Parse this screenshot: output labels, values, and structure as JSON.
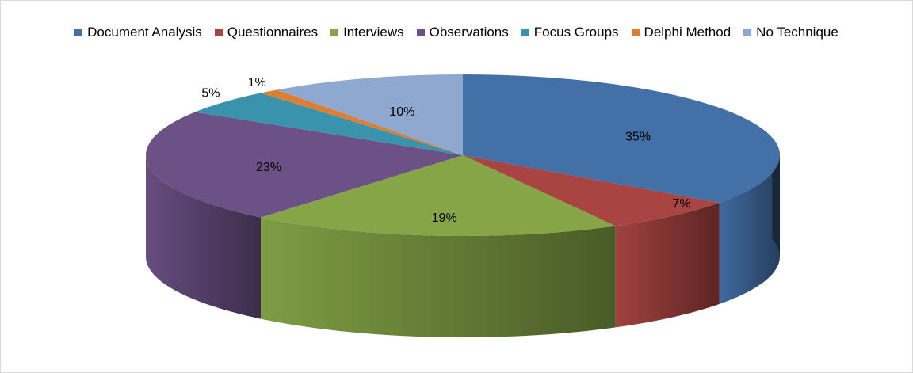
{
  "chart_data": {
    "type": "pie",
    "categories": [
      "Document Analysis",
      "Questionnaires",
      "Interviews",
      "Observations",
      "Focus Groups",
      "Delphi Method",
      "No Technique"
    ],
    "values": [
      35,
      7,
      19,
      23,
      5,
      1,
      10
    ],
    "labels": [
      "35%",
      "7%",
      "19%",
      "23%",
      "5%",
      "1%",
      "10%"
    ],
    "colors": [
      "#4470a8",
      "#a84442",
      "#85a546",
      "#6c5187",
      "#3a93ad",
      "#dd7f33",
      "#8fa8d0"
    ],
    "legend_position": "top",
    "style": "3d-pie"
  }
}
